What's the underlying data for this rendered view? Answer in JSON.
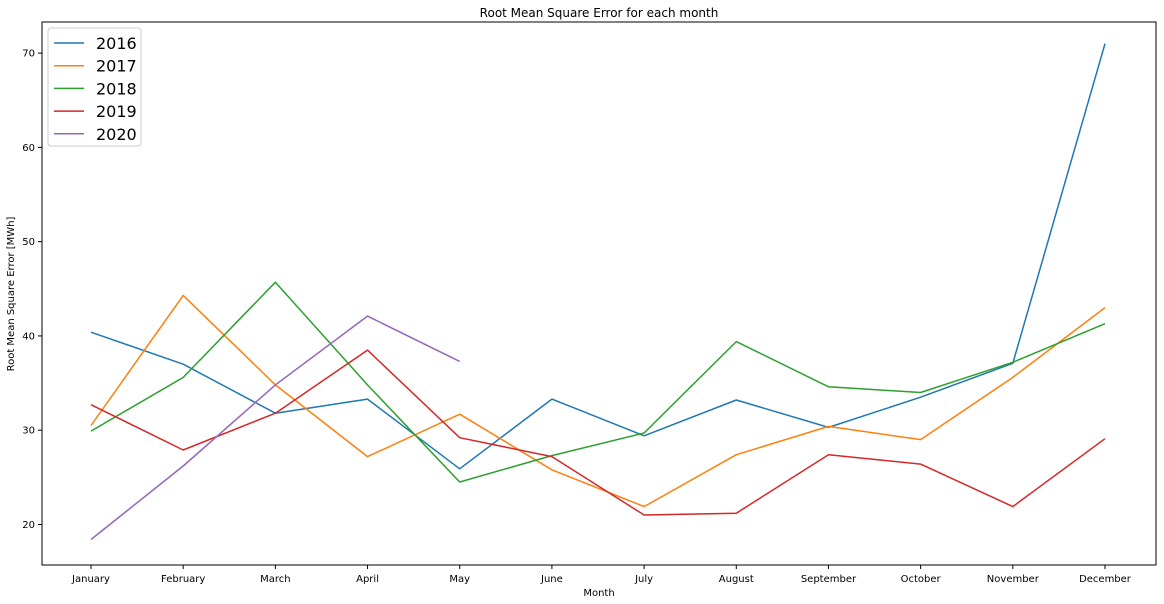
{
  "chart_data": {
    "type": "line",
    "title": "Root Mean Square Error for each month",
    "xlabel": "Month",
    "ylabel": "Root Mean Square Error [MWh]",
    "categories": [
      "January",
      "February",
      "March",
      "April",
      "May",
      "June",
      "July",
      "August",
      "September",
      "October",
      "November",
      "December"
    ],
    "ylim": [
      15.7,
      73.3
    ],
    "yticks": [
      20,
      30,
      40,
      50,
      60,
      70
    ],
    "grid": false,
    "legend": "top-left",
    "series": [
      {
        "name": "2016",
        "color": "#1f77b4",
        "values": [
          40.4,
          37.0,
          31.8,
          33.3,
          25.9,
          33.3,
          29.4,
          33.2,
          30.3,
          33.5,
          37.1,
          71.0
        ]
      },
      {
        "name": "2017",
        "color": "#ff7f0e",
        "values": [
          30.5,
          44.3,
          34.8,
          27.2,
          31.7,
          25.8,
          21.9,
          27.4,
          30.4,
          29.0,
          35.6,
          43.0
        ]
      },
      {
        "name": "2018",
        "color": "#2ca02c",
        "values": [
          29.9,
          35.6,
          45.7,
          34.8,
          24.5,
          27.3,
          29.7,
          39.4,
          34.6,
          34.0,
          37.2,
          41.3
        ]
      },
      {
        "name": "2019",
        "color": "#d62728",
        "values": [
          32.7,
          27.9,
          31.8,
          38.5,
          29.2,
          27.2,
          21.0,
          21.2,
          27.4,
          26.4,
          21.9,
          29.1
        ]
      },
      {
        "name": "2020",
        "color": "#9467bd",
        "values": [
          18.4,
          26.2,
          34.8,
          42.1,
          37.3,
          null,
          null,
          null,
          null,
          null,
          null,
          null
        ]
      }
    ]
  }
}
